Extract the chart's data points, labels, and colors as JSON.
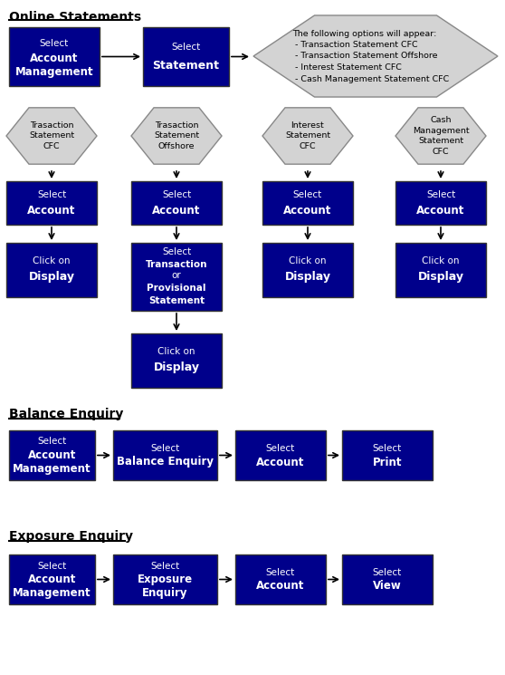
{
  "bg_color": "#ffffff",
  "box_color": "#00008B",
  "box_text_color": "#ffffff",
  "hex_color": "#d3d3d3",
  "hex_text_color": "#000000",
  "arrow_color": "#000000",
  "section_title_color": "#000000",
  "section1_title": "Online Statements",
  "section2_title": "Balance Enquiry",
  "section3_title": "Exposure Enquiry",
  "note_box_color": "#d3d3d3",
  "note_text_color": "#000000",
  "note_text": "The following options will appear:\n - Transaction Statement CFC\n - Transaction Statement Offshore\n - Interest Statement CFC\n - Cash Management Statement CFC"
}
